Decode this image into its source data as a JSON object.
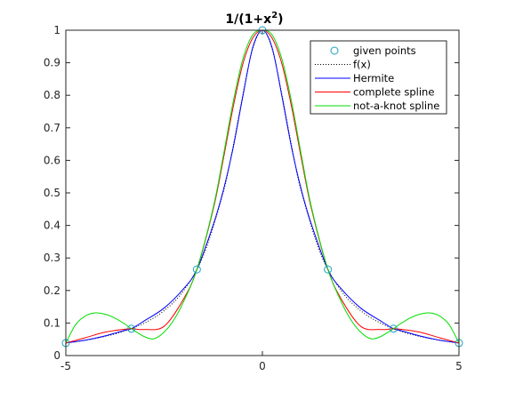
{
  "chart_data": {
    "type": "line",
    "title": "1/(1+x²)",
    "title_main": "1/(1+x",
    "title_sup": "2",
    "title_close": ")",
    "xlim": [
      -5,
      5
    ],
    "ylim": [
      0,
      1
    ],
    "xticks": [
      -5,
      0,
      5
    ],
    "yticks": [
      0,
      0.1,
      0.2,
      0.3,
      0.4,
      0.5,
      0.6,
      0.7,
      0.8,
      0.9,
      1
    ],
    "ytick_labels": [
      "0",
      "0.1",
      "0.2",
      "0.3",
      "0.4",
      "0.5",
      "0.6",
      "0.7",
      "0.8",
      "0.9",
      "1"
    ],
    "grid": false,
    "legend_position": "top-right",
    "colors": {
      "points": "#1b9fbf",
      "fx": "#000000",
      "hermite": "#0000ff",
      "complete": "#ff0000",
      "notaknot": "#00dd00"
    },
    "points": {
      "name": "given points",
      "x": [
        -5,
        -3.3333,
        -1.6667,
        0,
        1.6667,
        3.3333,
        5
      ],
      "y": [
        0.0385,
        0.0826,
        0.2647,
        1.0,
        0.2647,
        0.0826,
        0.0385
      ]
    },
    "series": [
      {
        "name": "f(x)",
        "style": "dotted",
        "x": [
          -5,
          -4.5,
          -4,
          -3.5,
          -3,
          -2.5,
          -2,
          -1.5,
          -1,
          -0.75,
          -0.5,
          -0.25,
          0,
          0.25,
          0.5,
          0.75,
          1,
          1.5,
          2,
          2.5,
          3,
          3.5,
          4,
          4.5,
          5
        ],
        "y": [
          0.0385,
          0.0471,
          0.0588,
          0.0755,
          0.1,
          0.1379,
          0.2,
          0.3077,
          0.5,
          0.64,
          0.8,
          0.9412,
          1.0,
          0.9412,
          0.8,
          0.64,
          0.5,
          0.3077,
          0.2,
          0.1379,
          0.1,
          0.0755,
          0.0588,
          0.0471,
          0.0385
        ]
      },
      {
        "name": "Hermite",
        "style": "solid",
        "x": [
          -5,
          -4.5,
          -4,
          -3.5,
          -3.3333,
          -3,
          -2.5,
          -2,
          -1.6667,
          -1.25,
          -1,
          -0.75,
          -0.5,
          -0.25,
          0,
          0.25,
          0.5,
          0.75,
          1,
          1.25,
          1.6667,
          2,
          2.5,
          3,
          3.3333,
          3.5,
          4,
          4.5,
          5
        ],
        "y": [
          0.0385,
          0.0475,
          0.0605,
          0.0775,
          0.0826,
          0.107,
          0.146,
          0.206,
          0.2647,
          0.402,
          0.505,
          0.635,
          0.795,
          0.945,
          1.0,
          0.945,
          0.795,
          0.635,
          0.505,
          0.402,
          0.2647,
          0.206,
          0.146,
          0.107,
          0.0826,
          0.0775,
          0.0605,
          0.0475,
          0.0385
        ]
      },
      {
        "name": "complete spline",
        "style": "solid",
        "x": [
          -5,
          -4.5,
          -4,
          -3.5,
          -3.3333,
          -3,
          -2.5,
          -2,
          -1.6667,
          -1.25,
          -1,
          -0.75,
          -0.5,
          -0.25,
          0,
          0.25,
          0.5,
          0.75,
          1,
          1.25,
          1.6667,
          2,
          2.5,
          3,
          3.3333,
          3.5,
          4,
          4.5,
          5
        ],
        "y": [
          0.0385,
          0.055,
          0.072,
          0.081,
          0.0826,
          0.08,
          0.09,
          0.175,
          0.2647,
          0.45,
          0.6,
          0.76,
          0.895,
          0.975,
          1.0,
          0.975,
          0.895,
          0.76,
          0.6,
          0.45,
          0.2647,
          0.175,
          0.09,
          0.08,
          0.0826,
          0.081,
          0.072,
          0.055,
          0.0385
        ]
      },
      {
        "name": "not-a-knot spline",
        "style": "solid",
        "x": [
          -5,
          -4.75,
          -4.5,
          -4.25,
          -4,
          -3.75,
          -3.5,
          -3.3333,
          -3,
          -2.75,
          -2.5,
          -2.25,
          -2,
          -1.6667,
          -1.25,
          -1,
          -0.75,
          -0.5,
          -0.25,
          0,
          0.25,
          0.5,
          0.75,
          1,
          1.25,
          1.6667,
          2,
          2.25,
          2.5,
          2.75,
          3,
          3.3333,
          3.5,
          3.75,
          4,
          4.25,
          4.5,
          4.75,
          5
        ],
        "y": [
          0.0385,
          0.095,
          0.122,
          0.131,
          0.127,
          0.115,
          0.097,
          0.0826,
          0.058,
          0.052,
          0.072,
          0.11,
          0.167,
          0.2647,
          0.455,
          0.61,
          0.775,
          0.91,
          0.985,
          1.0,
          0.985,
          0.91,
          0.775,
          0.61,
          0.455,
          0.2647,
          0.167,
          0.11,
          0.072,
          0.052,
          0.058,
          0.0826,
          0.097,
          0.115,
          0.127,
          0.131,
          0.122,
          0.095,
          0.0385
        ]
      }
    ]
  }
}
